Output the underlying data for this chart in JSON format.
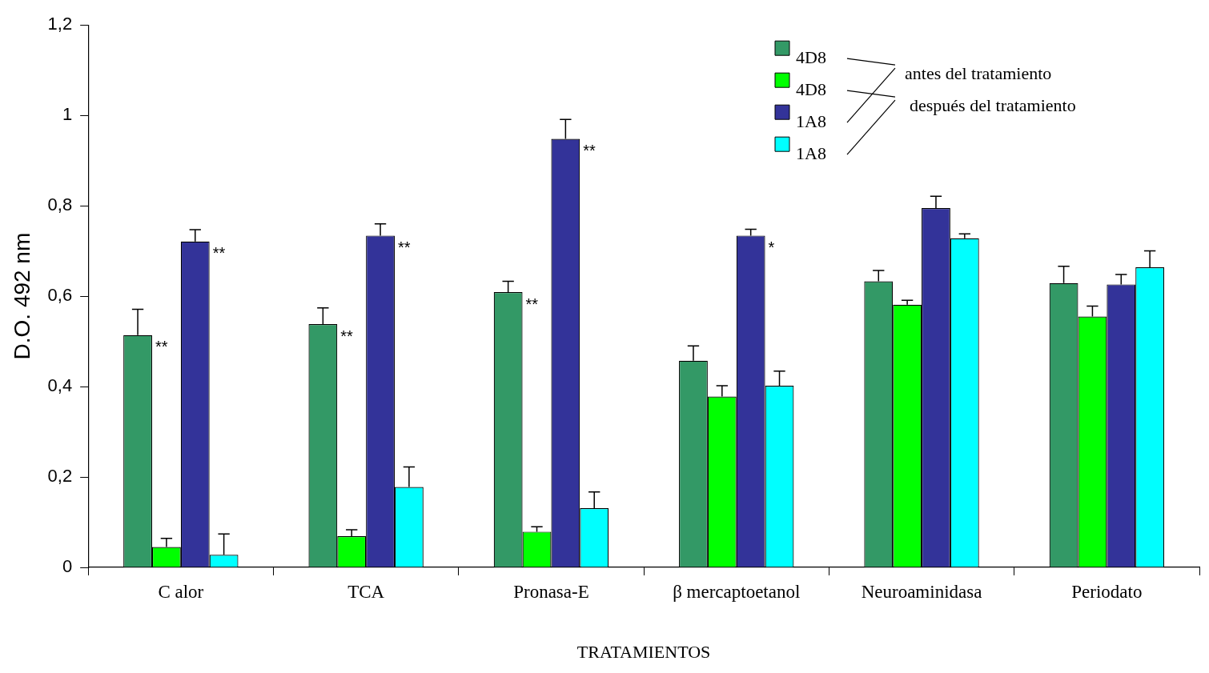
{
  "chart_data": {
    "type": "bar",
    "xlabel": "TRATAMIENTOS",
    "ylabel": "D.O. 492 nm",
    "categories": [
      "C alor",
      "TCA",
      "Pronasa-E",
      "β mercaptoetanol",
      "Neuroaminidasa",
      "Periodato"
    ],
    "series": [
      {
        "name": "4D8",
        "color": "#339966",
        "values": [
          0.514,
          0.538,
          0.609,
          0.457,
          0.633,
          0.629
        ],
        "errors": [
          [
            0.514,
            0.571
          ],
          [
            0.538,
            0.574
          ],
          [
            0.609,
            0.633
          ],
          [
            0.457,
            0.49
          ],
          [
            0.633,
            0.657
          ],
          [
            0.629,
            0.666
          ]
        ],
        "value_labels": [
          "**",
          "**",
          "**",
          null,
          null,
          null
        ]
      },
      {
        "name": "4D8",
        "color": "#00ff00",
        "values": [
          0.045,
          0.069,
          0.079,
          0.378,
          0.581,
          0.555
        ],
        "errors": [
          [
            0.045,
            0.064
          ],
          [
            0.069,
            0.083
          ],
          [
            0.079,
            0.09
          ],
          [
            0.378,
            0.402
          ],
          [
            0.581,
            0.591
          ],
          [
            0.555,
            0.578
          ]
        ]
      },
      {
        "name": "1A8",
        "color": "#333399",
        "values": [
          0.721,
          0.734,
          0.948,
          0.734,
          0.795,
          0.626
        ],
        "errors": [
          [
            0.721,
            0.747
          ],
          [
            0.734,
            0.76
          ],
          [
            0.948,
            0.991
          ],
          [
            0.734,
            0.748
          ],
          [
            0.795,
            0.821
          ],
          [
            0.626,
            0.648
          ]
        ],
        "value_labels": [
          "**",
          "**",
          "**",
          "*",
          null,
          null
        ]
      },
      {
        "name": "1A8",
        "color": "#00ffff",
        "values": [
          0.028,
          0.178,
          0.131,
          0.402,
          0.728,
          0.664
        ],
        "errors": [
          [
            0.028,
            0.074
          ],
          [
            0.178,
            0.222
          ],
          [
            0.131,
            0.167
          ],
          [
            0.402,
            0.434
          ],
          [
            0.728,
            0.738
          ],
          [
            0.664,
            0.7
          ]
        ]
      }
    ],
    "ylim": [
      0,
      1.2
    ],
    "yticks": [
      0,
      {
        "value": 0.2,
        "label": "0,2"
      },
      {
        "value": 0.4,
        "label": "0,4"
      },
      {
        "value": 0.6,
        "label": "0,6"
      },
      {
        "value": 0.8,
        "label": "0,8"
      },
      1,
      {
        "value": 1.2,
        "label": "1,2"
      }
    ],
    "grid": false,
    "legend": "top right",
    "annotations": [
      "antes del tratamiento",
      "después del tratamiento"
    ]
  }
}
